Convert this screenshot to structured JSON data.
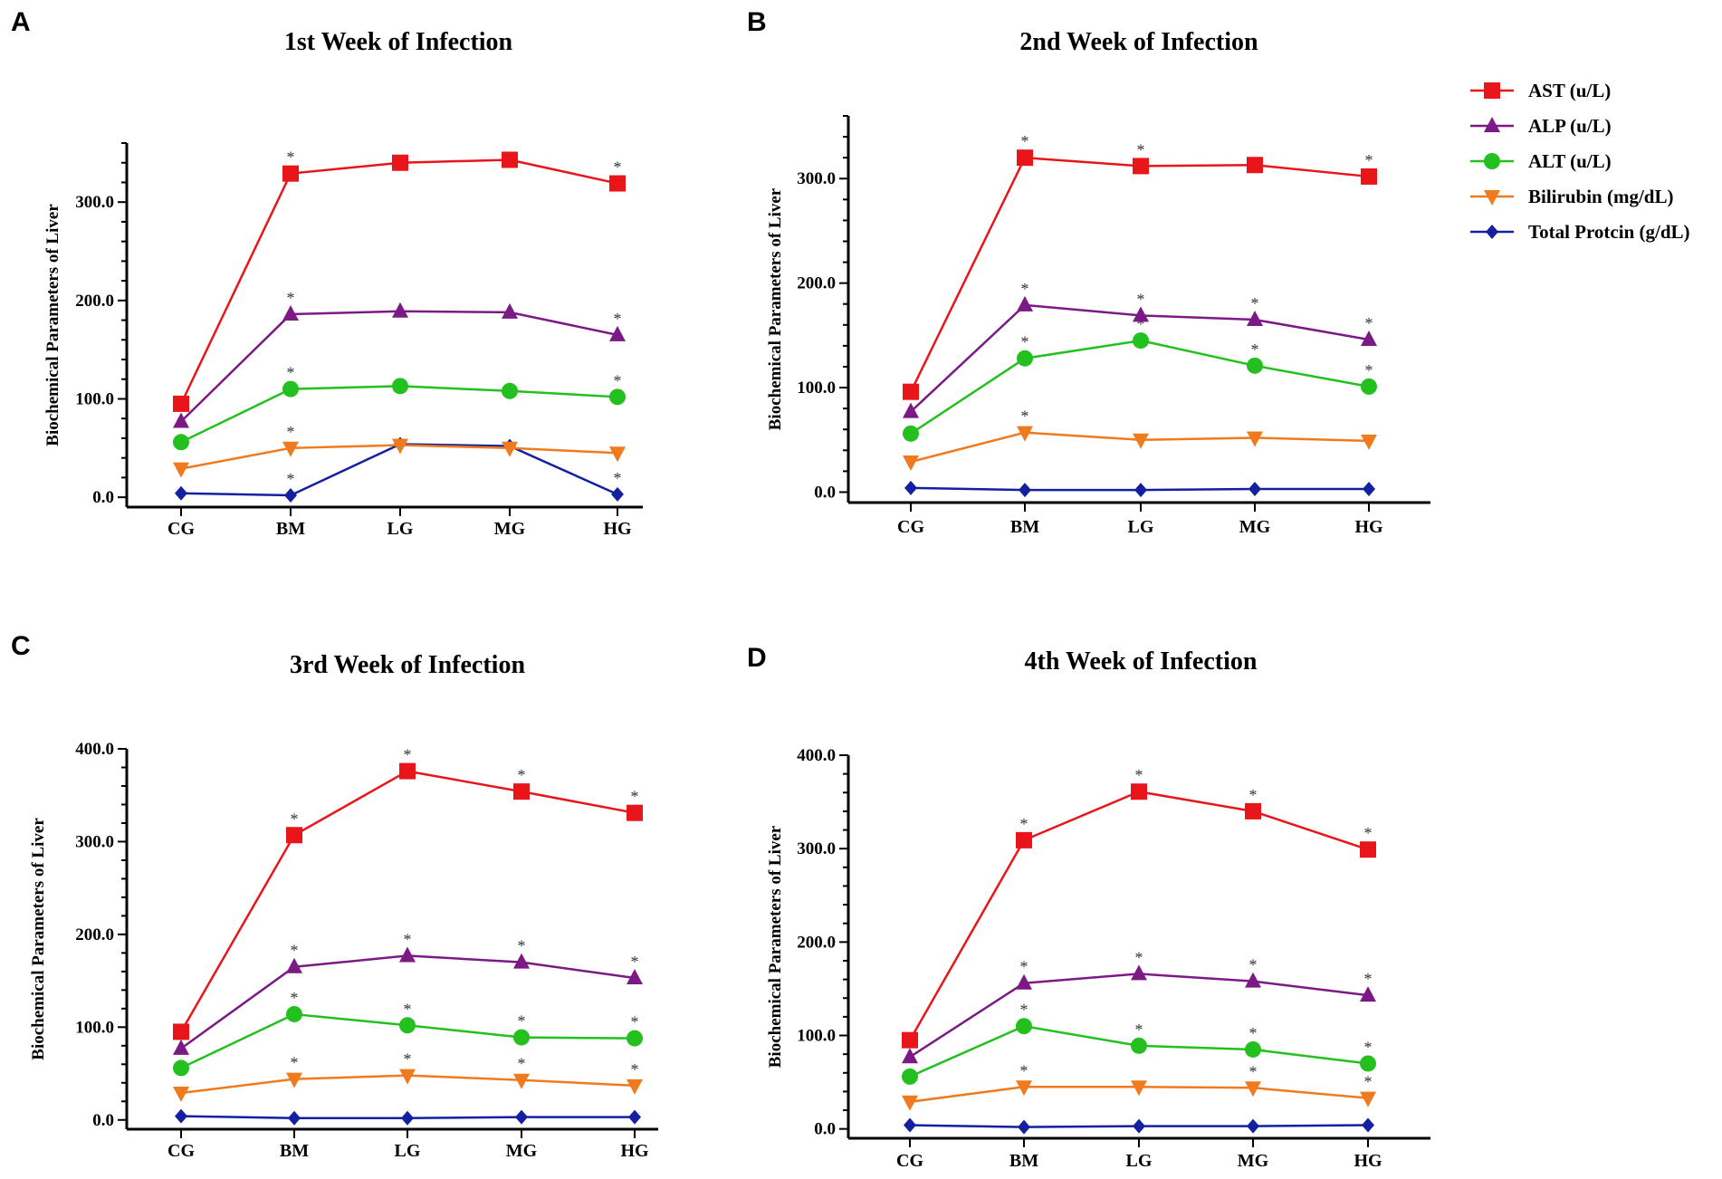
{
  "legend": {
    "items": [
      {
        "name": "AST (u/L)",
        "key": "ast"
      },
      {
        "name": "ALP (u/L)",
        "key": "alp"
      },
      {
        "name": "ALT (u/L)",
        "key": "alt"
      },
      {
        "name": "Bilirubin (mg/dL)",
        "key": "bili"
      },
      {
        "name": "Total Protcin (g/dL)",
        "key": "tp"
      }
    ]
  },
  "series_style": {
    "ast": {
      "color": "#e8161a",
      "marker": "square"
    },
    "alp": {
      "color": "#7b1a84",
      "marker": "triangle-up"
    },
    "alt": {
      "color": "#23c01f",
      "marker": "circle"
    },
    "bili": {
      "color": "#f07a1e",
      "marker": "triangle-down"
    },
    "tp": {
      "color": "#1420a0",
      "marker": "diamond"
    }
  },
  "chart_data": [
    {
      "panel": "A",
      "type": "line",
      "title": "1st Week of Infection",
      "ylabel": "Biochemical Parameters of Liver",
      "xlabel": "",
      "categories": [
        "CG",
        "BM",
        "LG",
        "MG",
        "HG"
      ],
      "ylim": [
        -10,
        360
      ],
      "yticks": [
        0,
        100,
        200,
        300
      ],
      "ytick_labels": [
        "0.0",
        "100.0",
        "200.0",
        "300.0"
      ],
      "series": [
        {
          "key": "ast",
          "name": "AST (u/L)",
          "values": [
            95,
            329,
            340,
            343,
            319
          ],
          "sig": [
            false,
            true,
            false,
            false,
            true
          ]
        },
        {
          "key": "alp",
          "name": "ALP (u/L)",
          "values": [
            77,
            186,
            189,
            188,
            165
          ],
          "sig": [
            false,
            true,
            false,
            false,
            true
          ]
        },
        {
          "key": "alt",
          "name": "ALT (u/L)",
          "values": [
            56,
            110,
            113,
            108,
            102
          ],
          "sig": [
            false,
            true,
            false,
            false,
            true
          ]
        },
        {
          "key": "bili",
          "name": "Bilirubin (mg/dL)",
          "values": [
            29,
            50,
            53,
            50,
            45
          ],
          "sig": [
            false,
            true,
            false,
            false,
            false
          ]
        },
        {
          "key": "tp",
          "name": "Total Protcin (g/dL)",
          "values": [
            4,
            2,
            54,
            52,
            3
          ],
          "sig": [
            false,
            true,
            false,
            false,
            true
          ]
        }
      ]
    },
    {
      "panel": "B",
      "type": "line",
      "title": "2nd Week of Infection",
      "ylabel": "Biochemical Parameters of Liver",
      "xlabel": "",
      "categories": [
        "CG",
        "BM",
        "LG",
        "MG",
        "HG"
      ],
      "ylim": [
        -10,
        360
      ],
      "yticks": [
        0,
        100,
        200,
        300
      ],
      "ytick_labels": [
        "0.0",
        "100.0",
        "200.0",
        "300.0"
      ],
      "series": [
        {
          "key": "ast",
          "name": "AST (u/L)",
          "values": [
            96,
            320,
            312,
            313,
            302
          ],
          "sig": [
            false,
            true,
            true,
            false,
            true
          ]
        },
        {
          "key": "alp",
          "name": "ALP (u/L)",
          "values": [
            77,
            179,
            169,
            165,
            146
          ],
          "sig": [
            false,
            true,
            true,
            true,
            true
          ]
        },
        {
          "key": "alt",
          "name": "ALT (u/L)",
          "values": [
            56,
            128,
            145,
            121,
            101
          ],
          "sig": [
            false,
            true,
            true,
            true,
            true
          ]
        },
        {
          "key": "bili",
          "name": "Bilirubin (mg/dL)",
          "values": [
            29,
            57,
            50,
            52,
            49
          ],
          "sig": [
            false,
            true,
            false,
            false,
            false
          ]
        },
        {
          "key": "tp",
          "name": "Total Protcin (g/dL)",
          "values": [
            4,
            2,
            2,
            3,
            3
          ],
          "sig": [
            false,
            false,
            false,
            false,
            false
          ]
        }
      ]
    },
    {
      "panel": "C",
      "type": "line",
      "title": "3rd Week of Infection",
      "ylabel": "Biochemical Parameters of Liver",
      "xlabel": "",
      "categories": [
        "CG",
        "BM",
        "LG",
        "MG",
        "HG"
      ],
      "ylim": [
        -10,
        400
      ],
      "yticks": [
        0,
        100,
        200,
        300,
        400
      ],
      "ytick_labels": [
        "0.0",
        "100.0",
        "200.0",
        "300.0",
        "400.0"
      ],
      "series": [
        {
          "key": "ast",
          "name": "AST (u/L)",
          "values": [
            95,
            307,
            376,
            354,
            331
          ],
          "sig": [
            false,
            true,
            true,
            true,
            true
          ]
        },
        {
          "key": "alp",
          "name": "ALP (u/L)",
          "values": [
            77,
            165,
            177,
            170,
            153
          ],
          "sig": [
            false,
            true,
            true,
            true,
            true
          ]
        },
        {
          "key": "alt",
          "name": "ALT (u/L)",
          "values": [
            56,
            114,
            102,
            89,
            88
          ],
          "sig": [
            false,
            true,
            true,
            true,
            true
          ]
        },
        {
          "key": "bili",
          "name": "Bilirubin (mg/dL)",
          "values": [
            29,
            44,
            48,
            43,
            37
          ],
          "sig": [
            false,
            true,
            true,
            true,
            true
          ]
        },
        {
          "key": "tp",
          "name": "Total Protcin (g/dL)",
          "values": [
            4,
            2,
            2,
            3,
            3
          ],
          "sig": [
            false,
            false,
            false,
            false,
            false
          ]
        }
      ]
    },
    {
      "panel": "D",
      "type": "line",
      "title": "4th Week of Infection",
      "ylabel": "Biochemical Parameters of Liver",
      "xlabel": "",
      "categories": [
        "CG",
        "BM",
        "LG",
        "MG",
        "HG"
      ],
      "ylim": [
        -10,
        400
      ],
      "yticks": [
        0,
        100,
        200,
        300,
        400
      ],
      "ytick_labels": [
        "0.0",
        "100.0",
        "200.0",
        "300.0",
        "400.0"
      ],
      "series": [
        {
          "key": "ast",
          "name": "AST (u/L)",
          "values": [
            95,
            309,
            361,
            340,
            299
          ],
          "sig": [
            false,
            true,
            true,
            true,
            true
          ]
        },
        {
          "key": "alp",
          "name": "ALP (u/L)",
          "values": [
            77,
            156,
            166,
            158,
            143
          ],
          "sig": [
            false,
            true,
            true,
            true,
            true
          ]
        },
        {
          "key": "alt",
          "name": "ALT (u/L)",
          "values": [
            56,
            110,
            89,
            85,
            70
          ],
          "sig": [
            false,
            true,
            true,
            true,
            true
          ]
        },
        {
          "key": "bili",
          "name": "Bilirubin (mg/dL)",
          "values": [
            29,
            45,
            45,
            44,
            33
          ],
          "sig": [
            false,
            true,
            false,
            true,
            true
          ]
        },
        {
          "key": "tp",
          "name": "Total Protcin (g/dL)",
          "values": [
            4,
            2,
            3,
            3,
            4
          ],
          "sig": [
            false,
            false,
            false,
            false,
            false
          ]
        }
      ]
    }
  ]
}
